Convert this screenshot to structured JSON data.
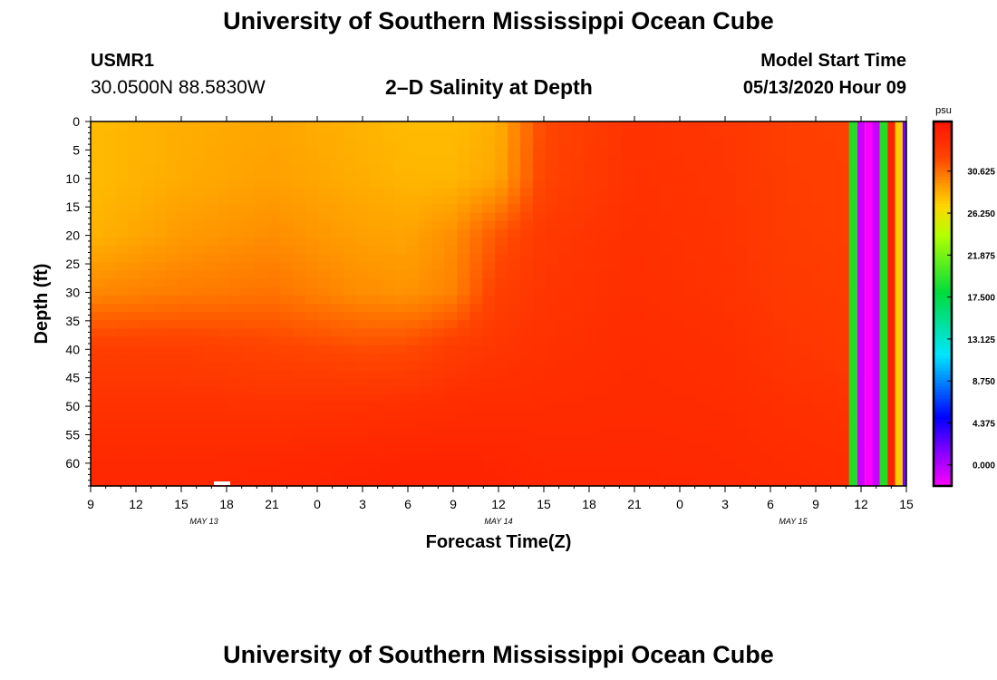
{
  "header": {
    "title": "University of Southern Mississippi Ocean Cube",
    "station_id": "USMR1",
    "station_coords": "30.0500N 88.5830W",
    "plot_title": "2–D Salinity at Depth",
    "model_start_label": "Model Start Time",
    "model_start_value": "05/13/2020 Hour 09"
  },
  "footer": {
    "title": "University of Southern Mississippi Ocean Cube"
  },
  "chart_data": {
    "type": "heatmap",
    "title": "2–D Salinity at Depth",
    "xlabel": "Forecast Time(Z)",
    "ylabel": "Depth (ft)",
    "x_range_hours": [
      0,
      54
    ],
    "y_range_ft": [
      0,
      64
    ],
    "x_tick_labels": [
      "9",
      "12",
      "15",
      "18",
      "21",
      "0",
      "3",
      "6",
      "9",
      "12",
      "15",
      "18",
      "21",
      "0",
      "3",
      "6",
      "9",
      "12",
      "15"
    ],
    "x_tick_hours": [
      0,
      3,
      6,
      9,
      12,
      15,
      18,
      21,
      24,
      27,
      30,
      33,
      36,
      39,
      42,
      45,
      48,
      51,
      54
    ],
    "date_labels": [
      {
        "text": "MAY 13",
        "hour": 7.5
      },
      {
        "text": "MAY 14",
        "hour": 27
      },
      {
        "text": "MAY 15",
        "hour": 46.5
      }
    ],
    "y_tick_values": [
      0,
      5,
      10,
      15,
      20,
      25,
      30,
      35,
      40,
      45,
      50,
      55,
      60
    ],
    "colorbar": {
      "unit": "psu",
      "range": [
        -2.2,
        35.8
      ],
      "tick_values": [
        0,
        4.375,
        8.75,
        13.125,
        17.5,
        21.875,
        26.25,
        30.625
      ],
      "tick_labels": [
        "0.000",
        "4.375",
        "8.750",
        "13.125",
        "17.500",
        "21.875",
        "26.250",
        "30.625"
      ]
    },
    "salinity_field_psu": {
      "hours": [
        0,
        6,
        12,
        18,
        21,
        24,
        27,
        30,
        36,
        42,
        46,
        50.2
      ],
      "depths_ft": [
        0,
        10,
        20,
        30,
        40,
        50,
        60,
        64
      ],
      "values": [
        [
          28.0,
          28.5,
          28.8,
          28.3,
          28.0,
          28.0,
          28.5,
          32.0,
          33.5,
          33.2,
          32.6,
          32.4
        ],
        [
          28.0,
          28.6,
          29.0,
          28.5,
          28.2,
          28.2,
          28.8,
          32.2,
          33.6,
          33.3,
          32.7,
          32.5
        ],
        [
          28.3,
          29.2,
          29.6,
          29.0,
          28.9,
          29.6,
          31.5,
          33.0,
          33.7,
          33.4,
          32.8,
          32.6
        ],
        [
          29.8,
          30.2,
          30.5,
          29.6,
          29.4,
          30.0,
          32.5,
          33.3,
          33.8,
          33.5,
          33.0,
          32.8
        ],
        [
          32.6,
          32.6,
          32.2,
          31.8,
          31.9,
          32.8,
          33.3,
          33.6,
          34.0,
          33.8,
          33.3,
          33.0
        ],
        [
          33.6,
          33.6,
          33.5,
          33.6,
          33.7,
          33.9,
          34.0,
          34.0,
          34.1,
          34.0,
          33.7,
          33.5
        ],
        [
          34.2,
          34.2,
          34.3,
          34.5,
          34.6,
          34.6,
          34.5,
          34.3,
          34.3,
          34.2,
          34.0,
          33.8
        ],
        [
          34.3,
          34.3,
          34.4,
          34.6,
          34.7,
          34.7,
          34.6,
          34.4,
          34.4,
          34.3,
          34.1,
          33.9
        ]
      ]
    },
    "end_stripes": [
      {
        "from_hour": 50.2,
        "to_hour": 50.75,
        "color": "#22dd22"
      },
      {
        "from_hour": 50.75,
        "to_hour": 51.25,
        "color": "#cc00ff"
      },
      {
        "from_hour": 51.25,
        "to_hour": 51.75,
        "color": "#ff00ff"
      },
      {
        "from_hour": 51.75,
        "to_hour": 52.25,
        "color": "#cc00ff"
      },
      {
        "from_hour": 52.25,
        "to_hour": 52.75,
        "color": "#22dd22"
      },
      {
        "from_hour": 52.75,
        "to_hour": 53.25,
        "color": "#ff2200"
      },
      {
        "from_hour": 53.25,
        "to_hour": 53.75,
        "color": "#ffcc00"
      },
      {
        "from_hour": 53.75,
        "to_hour": 54.0,
        "color": "#7a00ff"
      }
    ]
  }
}
